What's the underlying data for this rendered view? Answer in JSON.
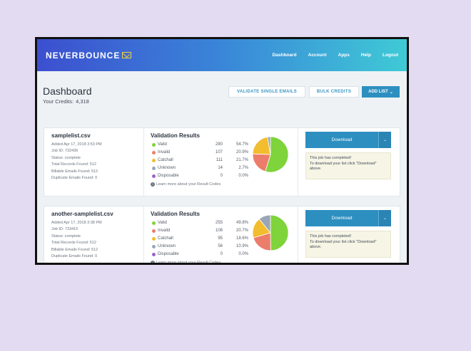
{
  "app": {
    "brand": "NEVERBOUNCE"
  },
  "nav": {
    "items": [
      "Dashboard",
      "Account",
      "Apps",
      "Help",
      "Logout"
    ]
  },
  "dashboard": {
    "title": "Dashboard",
    "credits_label": "Your Credits:",
    "credits_value": "4,318",
    "validate_label": "VALIDATE SINGLE EMAILS",
    "bulk_label": "BULK CREDITS",
    "add_list_label": "ADD LIST",
    "add_list_caret": "⌄"
  },
  "colors": {
    "valid": "#7ed43a",
    "invalid": "#ec7d6a",
    "catchall": "#f2bd2e",
    "unknown": "#9aa6b8",
    "disposable": "#9b63c9",
    "primary": "#2d8fc0"
  },
  "results_title": "Validation Results",
  "learn_more": "Learn more about your Result Codes",
  "download_label": "Download",
  "download_caret": "⌄",
  "jobs": [
    {
      "file_name": "samplelist.csv",
      "meta": [
        "Added Apr 17, 2018 3:53 PM",
        "Job ID: 732436",
        "Status: complete",
        "Total Records Found: 512",
        "Billable Emails Found: 512",
        "Duplicate Emails Found: 0"
      ],
      "results": [
        {
          "label": "Valid",
          "count": "280",
          "pct": "54.7%",
          "value": 54.7,
          "color": "#7ed43a"
        },
        {
          "label": "Invalid",
          "count": "107",
          "pct": "20.9%",
          "value": 20.9,
          "color": "#ec7d6a"
        },
        {
          "label": "Catchall",
          "count": "111",
          "pct": "21.7%",
          "value": 21.7,
          "color": "#f2bd2e"
        },
        {
          "label": "Unknown",
          "count": "14",
          "pct": "2.7%",
          "value": 2.7,
          "color": "#9aa6b8"
        },
        {
          "label": "Disposable",
          "count": "0",
          "pct": "0.0%",
          "value": 0.0,
          "color": "#9b63c9"
        }
      ],
      "notice": [
        "This job has completed!",
        "To download your list click \"Download\"",
        "above."
      ]
    },
    {
      "file_name": "another-samplelist.csv",
      "meta": [
        "Added Apr 17, 2018 3:38 PM",
        "Job ID: 733415",
        "Status: complete",
        "Total Records Found: 512",
        "Billable Emails Found: 512",
        "Duplicate Emails Found: 0"
      ],
      "results": [
        {
          "label": "Valid",
          "count": "255",
          "pct": "49.8%",
          "value": 49.8,
          "color": "#7ed43a"
        },
        {
          "label": "Invalid",
          "count": "106",
          "pct": "20.7%",
          "value": 20.7,
          "color": "#ec7d6a"
        },
        {
          "label": "Catchall",
          "count": "95",
          "pct": "18.6%",
          "value": 18.6,
          "color": "#f2bd2e"
        },
        {
          "label": "Unknown",
          "count": "56",
          "pct": "10.9%",
          "value": 10.9,
          "color": "#9aa6b8"
        },
        {
          "label": "Disposable",
          "count": "0",
          "pct": "0.0%",
          "value": 0.0,
          "color": "#9b63c9"
        }
      ],
      "notice": [
        "This job has completed!",
        "To download your list click \"Download\"",
        "above."
      ]
    }
  ]
}
